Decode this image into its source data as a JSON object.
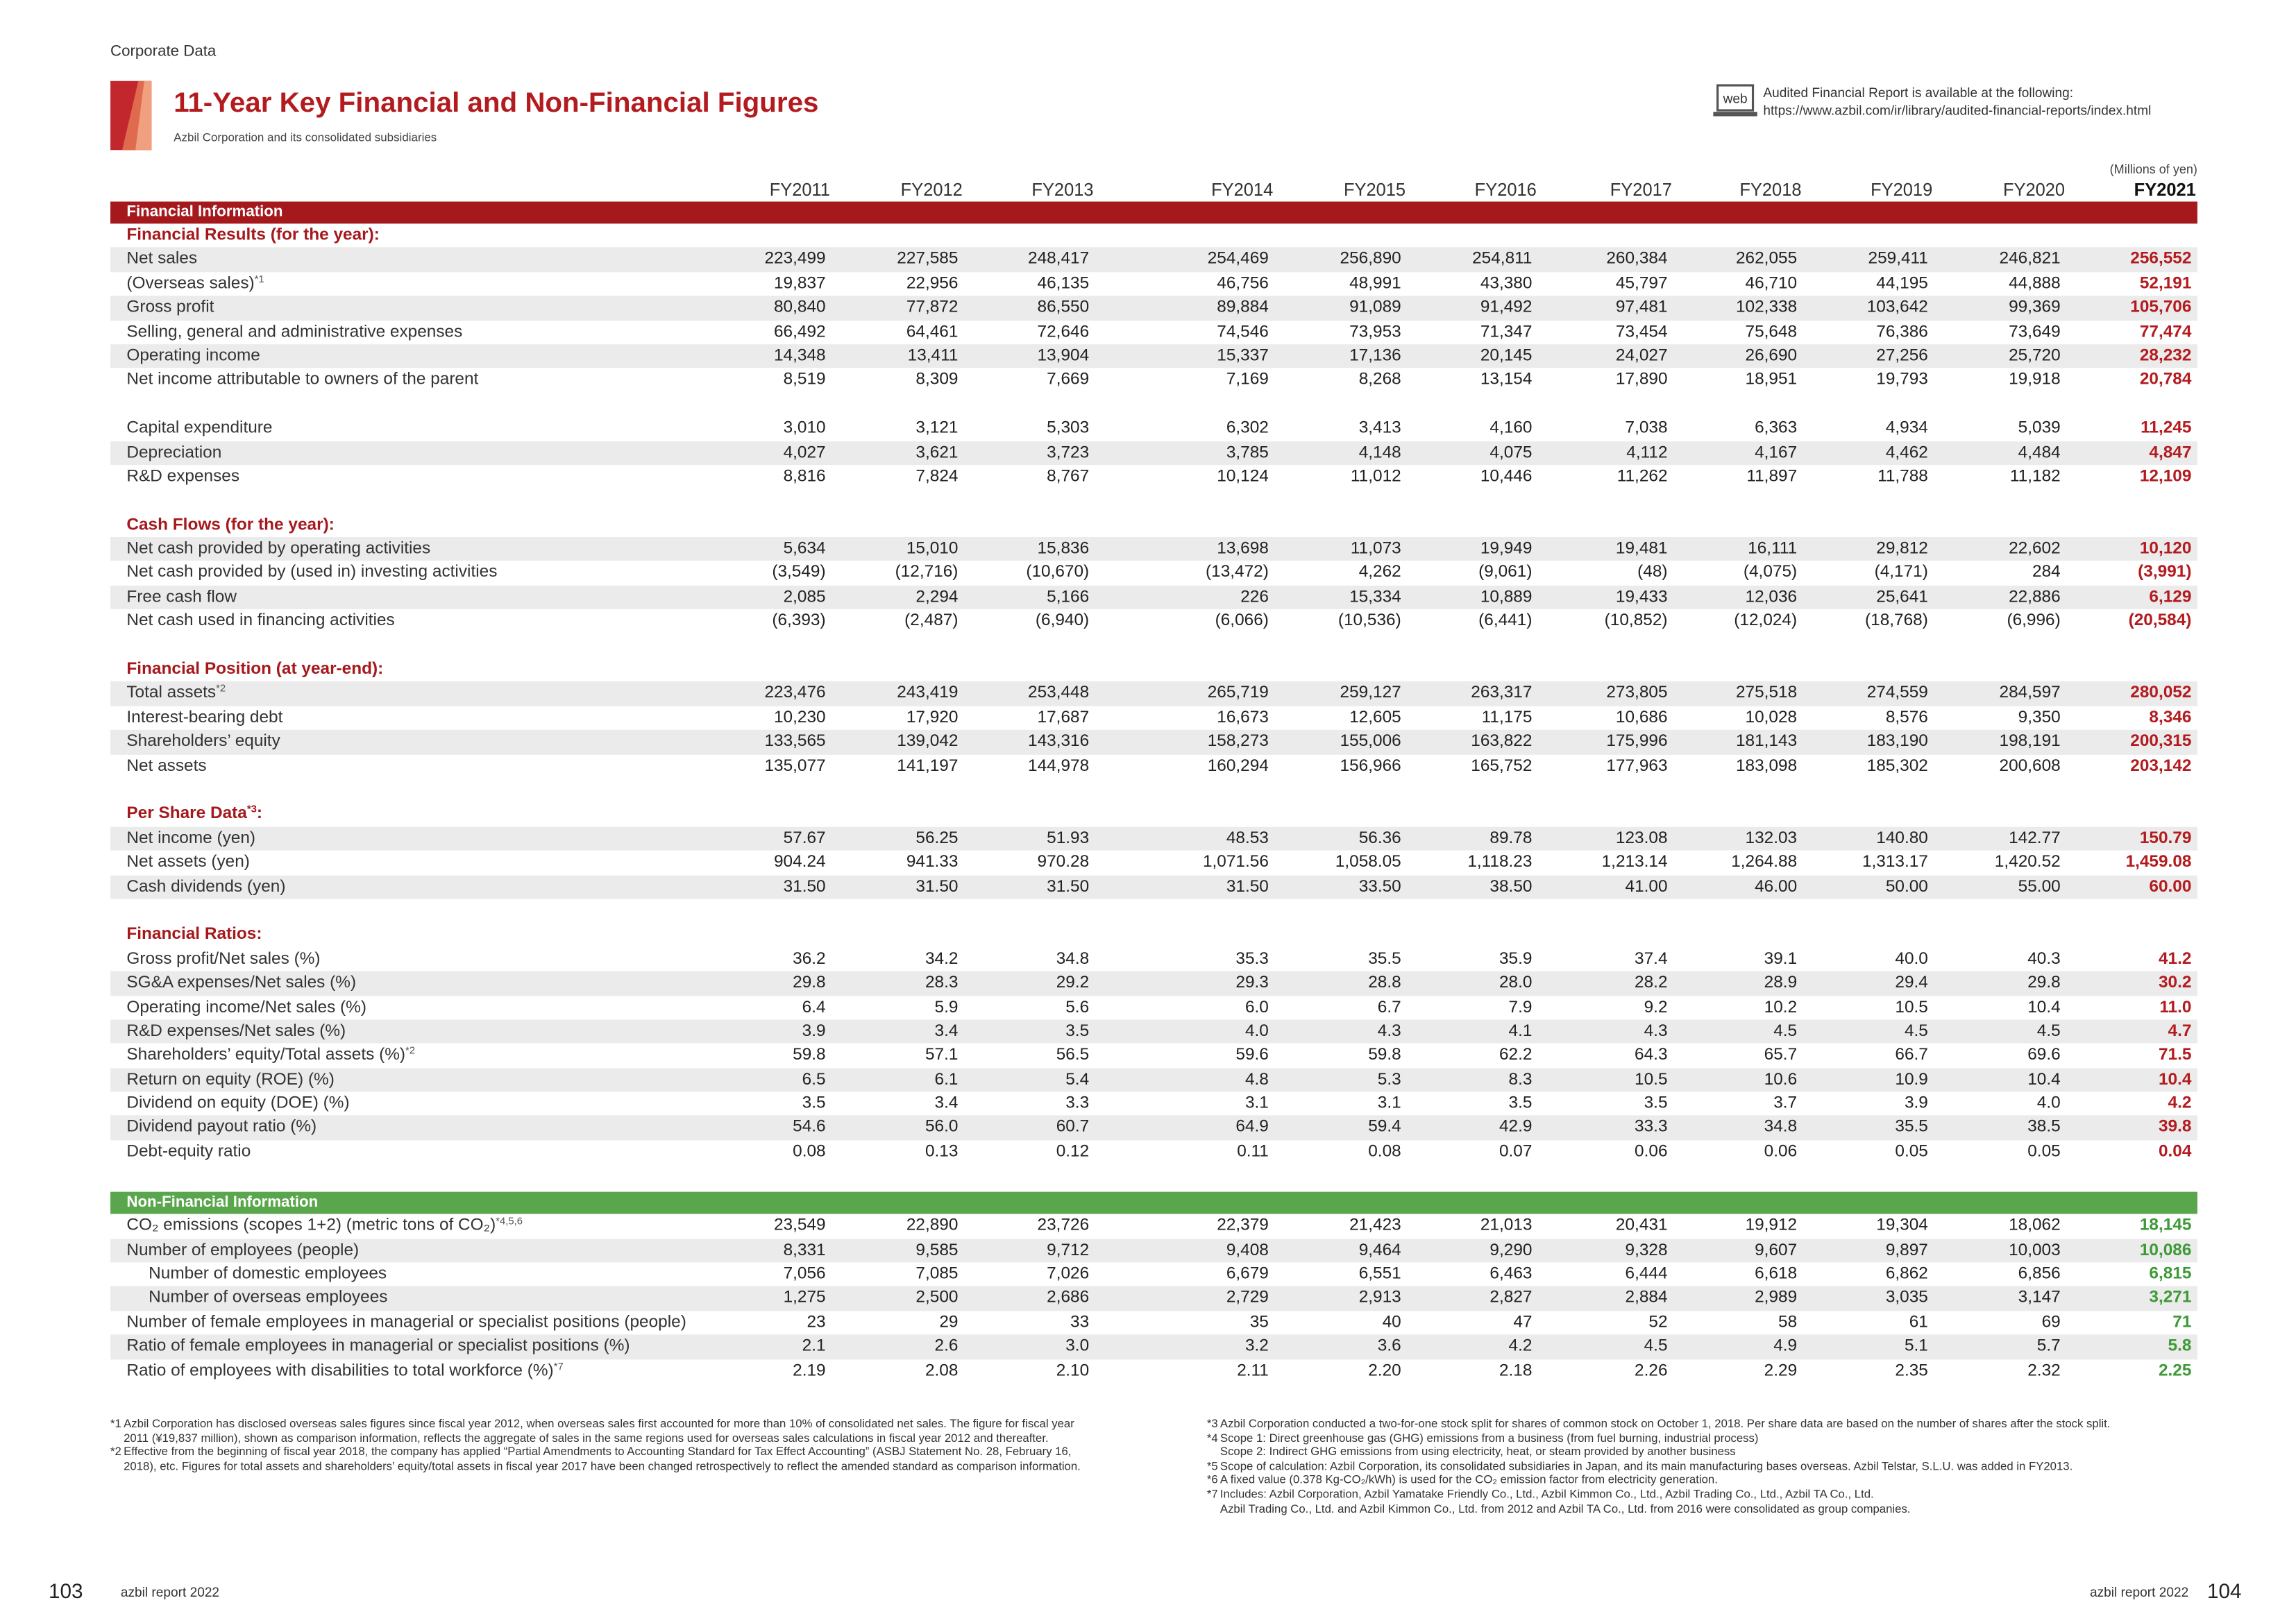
{
  "header": {
    "section": "Corporate Data",
    "title": "11-Year Key Financial and Non-Financial Figures",
    "subtitle": "Azbil Corporation and its consolidated subsidiaries",
    "web_icon": "web",
    "report_notice": "Audited Financial Report is available at the following:",
    "report_url": "https://www.azbil.com/ir/library/audited-financial-reports/index.html"
  },
  "table": {
    "unit": "(Millions of yen)",
    "columns": [
      "FY2011",
      "FY2012",
      "FY2013",
      "FY2014",
      "FY2015",
      "FY2016",
      "FY2017",
      "FY2018",
      "FY2019",
      "FY2020",
      "FY2021"
    ],
    "sections": [
      {
        "title": "Financial Information",
        "groups": [
          {
            "heading": "Financial Results (for the year):",
            "rows": [
              {
                "label": "Net sales",
                "values": [
                  "223,499",
                  "227,585",
                  "248,417",
                  "254,469",
                  "256,890",
                  "254,811",
                  "260,384",
                  "262,055",
                  "259,411",
                  "246,821",
                  "256,552"
                ]
              },
              {
                "label": "(Overseas sales)",
                "note": "*1",
                "values": [
                  "19,837",
                  "22,956",
                  "46,135",
                  "46,756",
                  "48,991",
                  "43,380",
                  "45,797",
                  "46,710",
                  "44,195",
                  "44,888",
                  "52,191"
                ]
              },
              {
                "label": "Gross profit",
                "values": [
                  "80,840",
                  "77,872",
                  "86,550",
                  "89,884",
                  "91,089",
                  "91,492",
                  "97,481",
                  "102,338",
                  "103,642",
                  "99,369",
                  "105,706"
                ]
              },
              {
                "label": "Selling, general and administrative expenses",
                "values": [
                  "66,492",
                  "64,461",
                  "72,646",
                  "74,546",
                  "73,953",
                  "71,347",
                  "73,454",
                  "75,648",
                  "76,386",
                  "73,649",
                  "77,474"
                ]
              },
              {
                "label": "Operating income",
                "values": [
                  "14,348",
                  "13,411",
                  "13,904",
                  "15,337",
                  "17,136",
                  "20,145",
                  "24,027",
                  "26,690",
                  "27,256",
                  "25,720",
                  "28,232"
                ]
              },
              {
                "label": "Net income attributable to owners of the parent",
                "values": [
                  "8,519",
                  "8,309",
                  "7,669",
                  "7,169",
                  "8,268",
                  "13,154",
                  "17,890",
                  "18,951",
                  "19,793",
                  "19,918",
                  "20,784"
                ]
              }
            ]
          },
          {
            "rows": [
              {
                "label": "Capital expenditure",
                "values": [
                  "3,010",
                  "3,121",
                  "5,303",
                  "6,302",
                  "3,413",
                  "4,160",
                  "7,038",
                  "6,363",
                  "4,934",
                  "5,039",
                  "11,245"
                ]
              },
              {
                "label": "Depreciation",
                "values": [
                  "4,027",
                  "3,621",
                  "3,723",
                  "3,785",
                  "4,148",
                  "4,075",
                  "4,112",
                  "4,167",
                  "4,462",
                  "4,484",
                  "4,847"
                ]
              },
              {
                "label": "R&D expenses",
                "values": [
                  "8,816",
                  "7,824",
                  "8,767",
                  "10,124",
                  "11,012",
                  "10,446",
                  "11,262",
                  "11,897",
                  "11,788",
                  "11,182",
                  "12,109"
                ]
              }
            ]
          },
          {
            "heading": "Cash Flows (for the year):",
            "rows": [
              {
                "label": "Net cash provided by operating activities",
                "values": [
                  "5,634",
                  "15,010",
                  "15,836",
                  "13,698",
                  "11,073",
                  "19,949",
                  "19,481",
                  "16,111",
                  "29,812",
                  "22,602",
                  "10,120"
                ]
              },
              {
                "label": "Net cash provided by (used in) investing activities",
                "values": [
                  "(3,549)",
                  "(12,716)",
                  "(10,670)",
                  "(13,472)",
                  "4,262",
                  "(9,061)",
                  "(48)",
                  "(4,075)",
                  "(4,171)",
                  "284",
                  "(3,991)"
                ]
              },
              {
                "label": "Free cash flow",
                "values": [
                  "2,085",
                  "2,294",
                  "5,166",
                  "226",
                  "15,334",
                  "10,889",
                  "19,433",
                  "12,036",
                  "25,641",
                  "22,886",
                  "6,129"
                ]
              },
              {
                "label": "Net cash used in financing activities",
                "values": [
                  "(6,393)",
                  "(2,487)",
                  "(6,940)",
                  "(6,066)",
                  "(10,536)",
                  "(6,441)",
                  "(10,852)",
                  "(12,024)",
                  "(18,768)",
                  "(6,996)",
                  "(20,584)"
                ]
              }
            ]
          },
          {
            "heading": "Financial Position (at year-end):",
            "rows": [
              {
                "label": "Total assets",
                "note": "*2",
                "values": [
                  "223,476",
                  "243,419",
                  "253,448",
                  "265,719",
                  "259,127",
                  "263,317",
                  "273,805",
                  "275,518",
                  "274,559",
                  "284,597",
                  "280,052"
                ]
              },
              {
                "label": "Interest-bearing debt",
                "values": [
                  "10,230",
                  "17,920",
                  "17,687",
                  "16,673",
                  "12,605",
                  "11,175",
                  "10,686",
                  "10,028",
                  "8,576",
                  "9,350",
                  "8,346"
                ]
              },
              {
                "label": "Shareholders’ equity",
                "values": [
                  "133,565",
                  "139,042",
                  "143,316",
                  "158,273",
                  "155,006",
                  "163,822",
                  "175,996",
                  "181,143",
                  "183,190",
                  "198,191",
                  "200,315"
                ]
              },
              {
                "label": "Net assets",
                "values": [
                  "135,077",
                  "141,197",
                  "144,978",
                  "160,294",
                  "156,966",
                  "165,752",
                  "177,963",
                  "183,098",
                  "185,302",
                  "200,608",
                  "203,142"
                ]
              }
            ]
          },
          {
            "heading": "Per Share Data",
            "heading_note": "*3",
            "heading_end": ":",
            "rows": [
              {
                "label": "Net income (yen)",
                "values": [
                  "57.67",
                  "56.25",
                  "51.93",
                  "48.53",
                  "56.36",
                  "89.78",
                  "123.08",
                  "132.03",
                  "140.80",
                  "142.77",
                  "150.79"
                ]
              },
              {
                "label": "Net assets (yen)",
                "values": [
                  "904.24",
                  "941.33",
                  "970.28",
                  "1,071.56",
                  "1,058.05",
                  "1,118.23",
                  "1,213.14",
                  "1,264.88",
                  "1,313.17",
                  "1,420.52",
                  "1,459.08"
                ]
              },
              {
                "label": "Cash dividends (yen)",
                "values": [
                  "31.50",
                  "31.50",
                  "31.50",
                  "31.50",
                  "33.50",
                  "38.50",
                  "41.00",
                  "46.00",
                  "50.00",
                  "55.00",
                  "60.00"
                ]
              }
            ]
          },
          {
            "heading": "Financial Ratios:",
            "rows": [
              {
                "label": "Gross profit/Net sales (%)",
                "values": [
                  "36.2",
                  "34.2",
                  "34.8",
                  "35.3",
                  "35.5",
                  "35.9",
                  "37.4",
                  "39.1",
                  "40.0",
                  "40.3",
                  "41.2"
                ]
              },
              {
                "label": "SG&A expenses/Net sales (%)",
                "values": [
                  "29.8",
                  "28.3",
                  "29.2",
                  "29.3",
                  "28.8",
                  "28.0",
                  "28.2",
                  "28.9",
                  "29.4",
                  "29.8",
                  "30.2"
                ]
              },
              {
                "label": "Operating income/Net sales (%)",
                "values": [
                  "6.4",
                  "5.9",
                  "5.6",
                  "6.0",
                  "6.7",
                  "7.9",
                  "9.2",
                  "10.2",
                  "10.5",
                  "10.4",
                  "11.0"
                ]
              },
              {
                "label": "R&D expenses/Net sales (%)",
                "values": [
                  "3.9",
                  "3.4",
                  "3.5",
                  "4.0",
                  "4.3",
                  "4.1",
                  "4.3",
                  "4.5",
                  "4.5",
                  "4.5",
                  "4.7"
                ]
              },
              {
                "label": "Shareholders’ equity/Total assets (%)",
                "note": "*2",
                "values": [
                  "59.8",
                  "57.1",
                  "56.5",
                  "59.6",
                  "59.8",
                  "62.2",
                  "64.3",
                  "65.7",
                  "66.7",
                  "69.6",
                  "71.5"
                ]
              },
              {
                "label": "Return on equity (ROE) (%)",
                "values": [
                  "6.5",
                  "6.1",
                  "5.4",
                  "4.8",
                  "5.3",
                  "8.3",
                  "10.5",
                  "10.6",
                  "10.9",
                  "10.4",
                  "10.4"
                ]
              },
              {
                "label": "Dividend on equity (DOE) (%)",
                "values": [
                  "3.5",
                  "3.4",
                  "3.3",
                  "3.1",
                  "3.1",
                  "3.5",
                  "3.5",
                  "3.7",
                  "3.9",
                  "4.0",
                  "4.2"
                ]
              },
              {
                "label": "Dividend payout ratio (%)",
                "values": [
                  "54.6",
                  "56.0",
                  "60.7",
                  "64.9",
                  "59.4",
                  "42.9",
                  "33.3",
                  "34.8",
                  "35.5",
                  "38.5",
                  "39.8"
                ]
              },
              {
                "label": "Debt-equity ratio",
                "values": [
                  "0.08",
                  "0.13",
                  "0.12",
                  "0.11",
                  "0.08",
                  "0.07",
                  "0.06",
                  "0.06",
                  "0.05",
                  "0.05",
                  "0.04"
                ]
              }
            ]
          }
        ]
      },
      {
        "title": "Non-Financial Information",
        "groups": [
          {
            "rows": [
              {
                "label": "CO₂ emissions (scopes 1+2) (metric tons of CO₂)",
                "note": "*4,5,6",
                "values": [
                  "23,549",
                  "22,890",
                  "23,726",
                  "22,379",
                  "21,423",
                  "21,013",
                  "20,431",
                  "19,912",
                  "19,304",
                  "18,062",
                  "18,145"
                ]
              },
              {
                "label": "Number of employees (people)",
                "values": [
                  "8,331",
                  "9,585",
                  "9,712",
                  "9,408",
                  "9,464",
                  "9,290",
                  "9,328",
                  "9,607",
                  "9,897",
                  "10,003",
                  "10,086"
                ],
                "sub_rows": [
                  {
                    "label": "Number of domestic employees",
                    "values": [
                      "7,056",
                      "7,085",
                      "7,026",
                      "6,679",
                      "6,551",
                      "6,463",
                      "6,444",
                      "6,618",
                      "6,862",
                      "6,856",
                      "6,815"
                    ]
                  },
                  {
                    "label": "Number of overseas employees",
                    "values": [
                      "1,275",
                      "2,500",
                      "2,686",
                      "2,729",
                      "2,913",
                      "2,827",
                      "2,884",
                      "2,989",
                      "3,035",
                      "3,147",
                      "3,271"
                    ]
                  }
                ]
              },
              {
                "label": "Number of female employees in managerial or specialist positions (people)",
                "values": [
                  "23",
                  "29",
                  "33",
                  "35",
                  "40",
                  "47",
                  "52",
                  "58",
                  "61",
                  "69",
                  "71"
                ]
              },
              {
                "label": "Ratio of female employees in managerial or specialist positions (%)",
                "values": [
                  "2.1",
                  "2.6",
                  "3.0",
                  "3.2",
                  "3.6",
                  "4.2",
                  "4.5",
                  "4.9",
                  "5.1",
                  "5.7",
                  "5.8"
                ]
              },
              {
                "label": "Ratio of employees with disabilities to total workforce (%)",
                "note": "*7",
                "values": [
                  "2.19",
                  "2.08",
                  "2.10",
                  "2.11",
                  "2.20",
                  "2.18",
                  "2.26",
                  "2.29",
                  "2.35",
                  "2.32",
                  "2.25"
                ]
              }
            ]
          }
        ]
      }
    ]
  },
  "footnotes": {
    "left": [
      {
        "mark": "*1",
        "lines": [
          "Azbil Corporation has disclosed overseas sales figures since fiscal year 2012, when overseas sales first accounted for more than 10% of consolidated net sales. The figure for fiscal year 2011 (¥19,837 million), shown as comparison information, reflects the aggregate of sales in the same regions used for overseas sales calculations in fiscal year 2012 and thereafter."
        ]
      },
      {
        "mark": "*2",
        "lines": [
          "Effective from the beginning of fiscal year 2018, the company has applied “Partial Amendments to Accounting Standard for Tax Effect Accounting” (ASBJ Statement No. 28, February 16, 2018), etc. Figures for total assets and shareholders’ equity/total assets in fiscal year 2017 have been changed retrospectively to reflect the amended standard as comparison information."
        ]
      }
    ],
    "right": [
      {
        "mark": "*3",
        "lines": [
          "Azbil Corporation conducted a two-for-one stock split for shares of common stock on October 1, 2018. Per share data are based on the number of shares after the stock split."
        ]
      },
      {
        "mark": "*4",
        "lines": [
          "Scope 1: Direct greenhouse gas (GHG) emissions from a business (from fuel burning, industrial process)",
          "Scope 2: Indirect GHG emissions from using electricity, heat, or steam provided by another business"
        ]
      },
      {
        "mark": "*5",
        "lines": [
          "Scope of calculation: Azbil Corporation, its consolidated subsidiaries in Japan, and its main manufacturing bases overseas. Azbil Telstar, S.L.U. was added in FY2013."
        ]
      },
      {
        "mark": "*6",
        "lines": [
          "A fixed value (0.378 Kg-CO₂/kWh) is used for the CO₂ emission factor from electricity generation."
        ]
      },
      {
        "mark": "*7",
        "lines": [
          "Includes: Azbil Corporation, Azbil Yamatake Friendly Co., Ltd., Azbil Kimmon Co., Ltd., Azbil Trading Co., Ltd., Azbil TA Co., Ltd.",
          "Azbil Trading Co., Ltd. and Azbil Kimmon Co., Ltd. from 2012 and Azbil TA Co., Ltd. from 2016 were consolidated as group companies."
        ]
      }
    ]
  },
  "footer": {
    "left_page": "103",
    "left_label": "azbil report 2022",
    "right_label": "azbil report 2022",
    "right_page": "104"
  }
}
